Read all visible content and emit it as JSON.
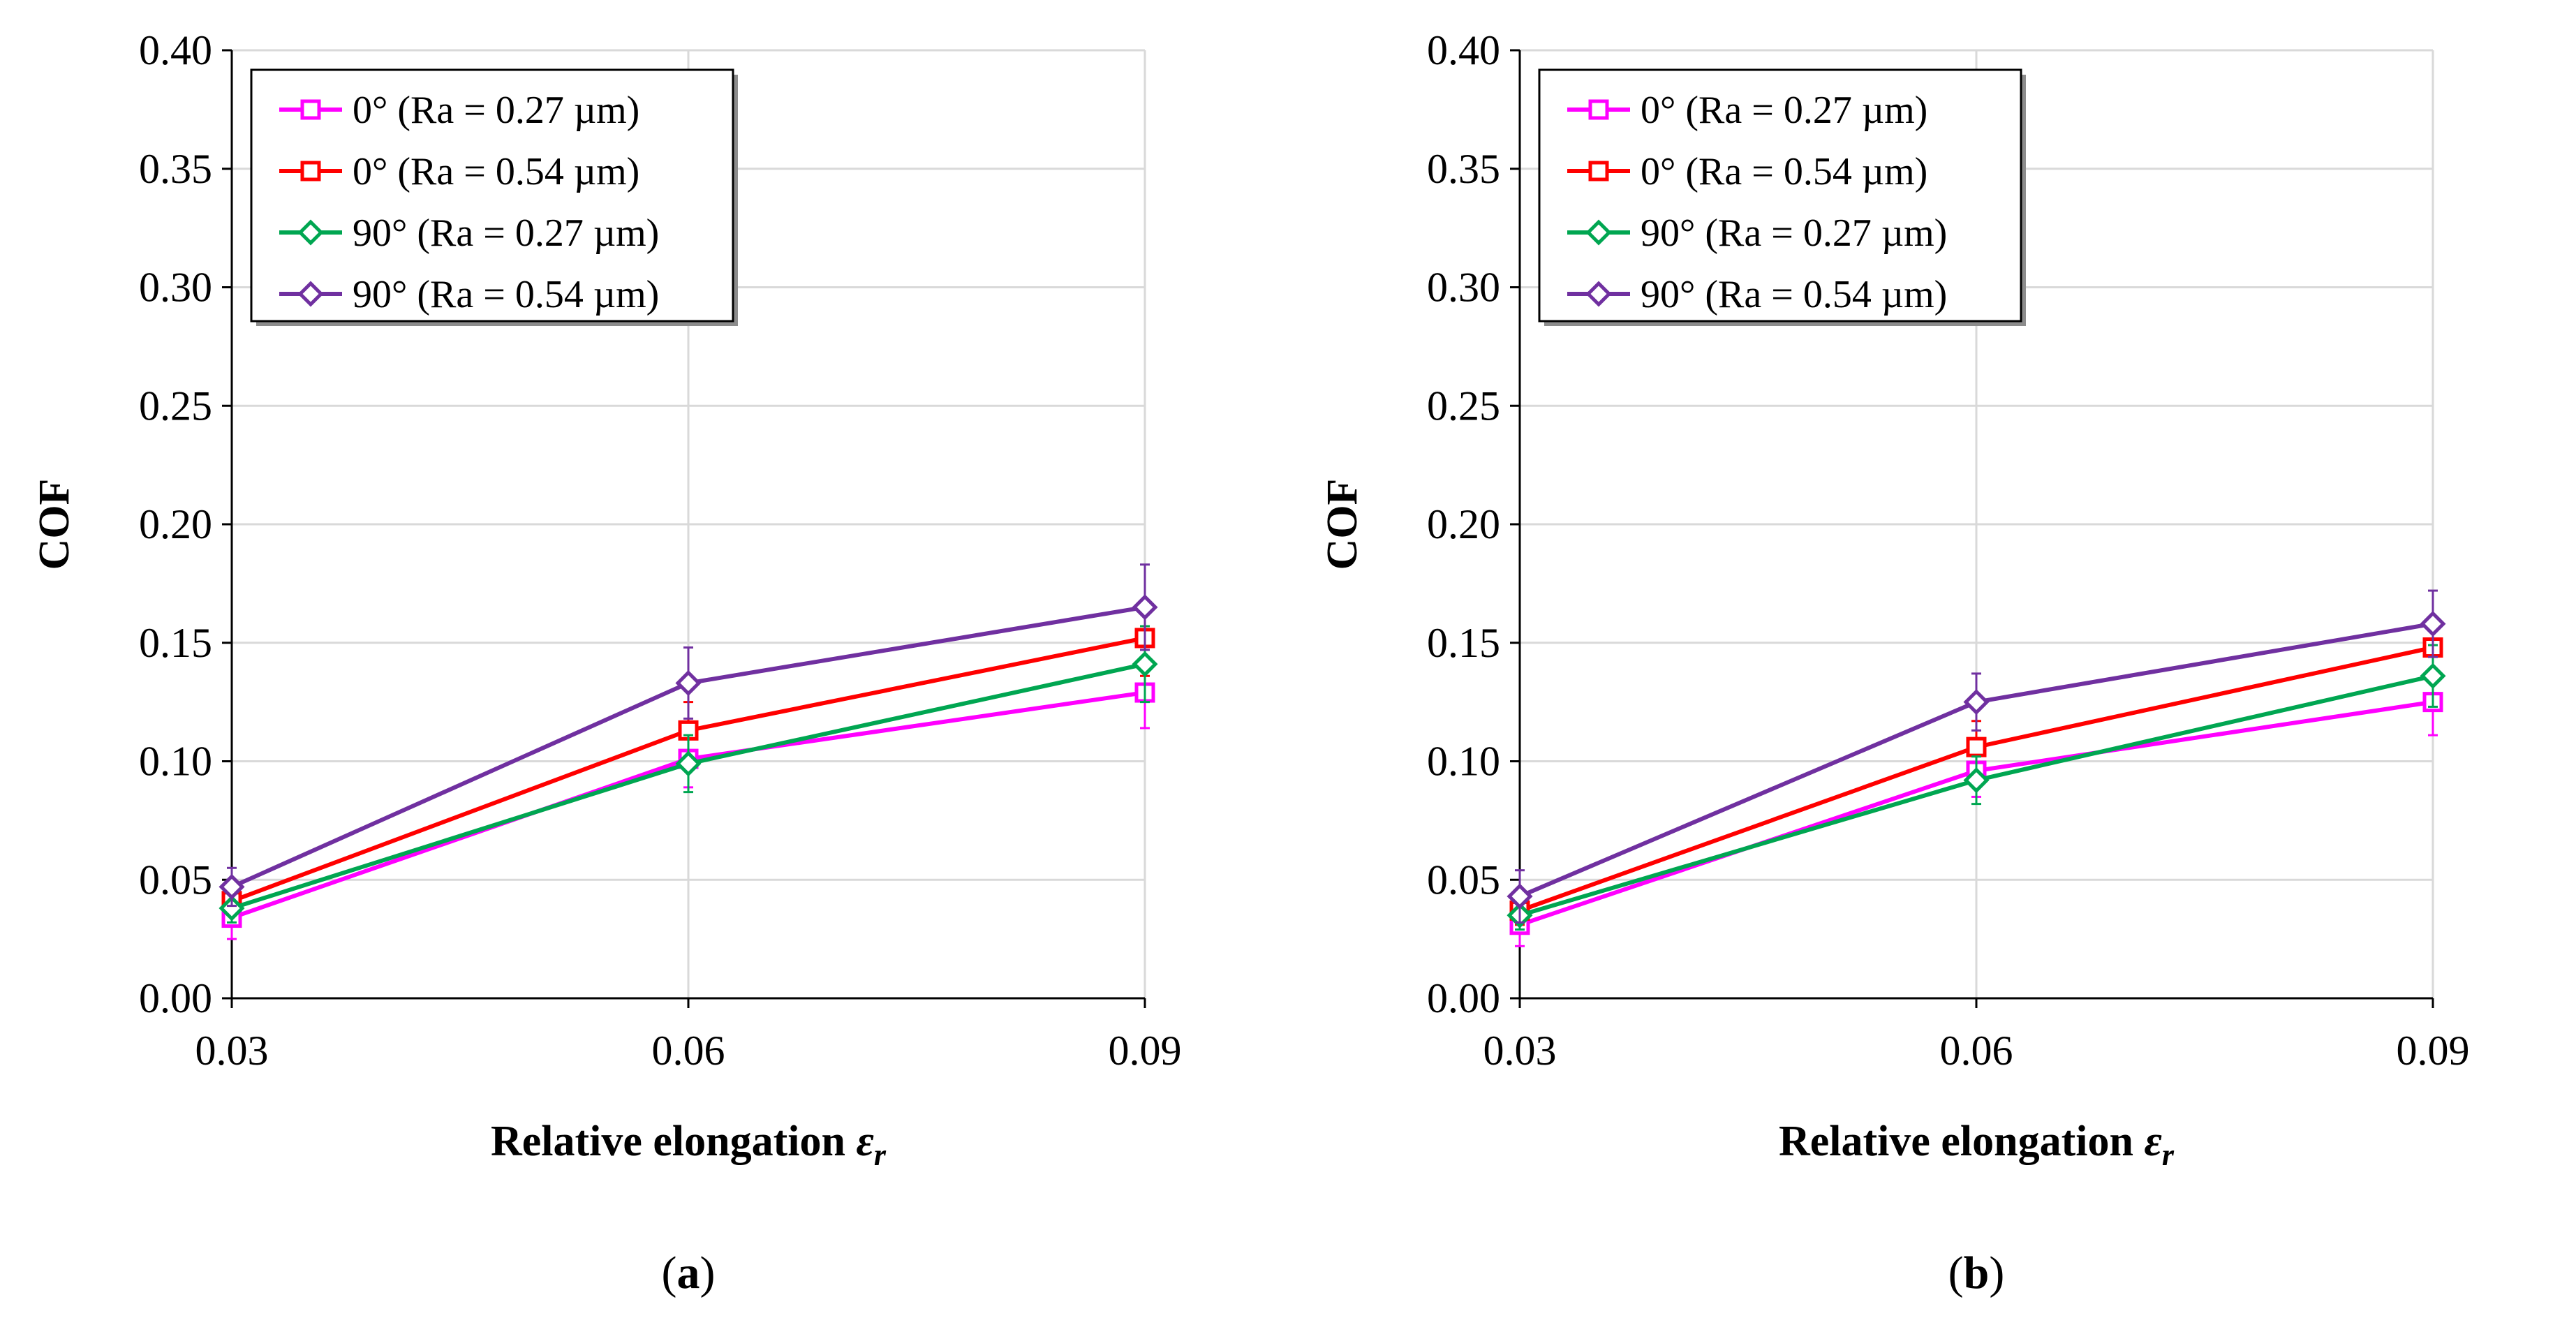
{
  "chart_data": [
    {
      "type": "line",
      "panel_label": "a",
      "xlabel": "Relative elongation ",
      "xlabel_symbol": "ε",
      "xlabel_subscript": "r",
      "ylabel": "COF",
      "x": [
        0.03,
        0.06,
        0.09
      ],
      "x_tick_labels": [
        "0.03",
        "0.06",
        "0.09"
      ],
      "y_tick_labels": [
        "0.00",
        "0.05",
        "0.10",
        "0.15",
        "0.20",
        "0.25",
        "0.30",
        "0.35",
        "0.40"
      ],
      "ylim": [
        0,
        0.4
      ],
      "grid": true,
      "legend_position": "top-left",
      "series": [
        {
          "name": "0° (Ra = 0.27 µm)",
          "marker": "square",
          "color": "#ff00ff",
          "values": [
            0.034,
            0.101,
            0.129
          ],
          "errors": [
            0.009,
            0.012,
            0.015
          ]
        },
        {
          "name": "0° (Ra = 0.54 µm)",
          "marker": "square",
          "color": "#ff0000",
          "values": [
            0.041,
            0.113,
            0.152
          ],
          "errors": [
            0.006,
            0.012,
            0.016
          ]
        },
        {
          "name": "90° (Ra = 0.27 µm)",
          "marker": "diamond",
          "color": "#00a651",
          "values": [
            0.038,
            0.099,
            0.141
          ],
          "errors": [
            0.006,
            0.012,
            0.016
          ]
        },
        {
          "name": "90° (Ra = 0.54 µm)",
          "marker": "diamond",
          "color": "#7030a0",
          "values": [
            0.047,
            0.133,
            0.165
          ],
          "errors": [
            0.008,
            0.015,
            0.018
          ]
        }
      ]
    },
    {
      "type": "line",
      "panel_label": "b",
      "xlabel": "Relative elongation ",
      "xlabel_symbol": "ε",
      "xlabel_subscript": "r",
      "ylabel": "COF",
      "x": [
        0.03,
        0.06,
        0.09
      ],
      "x_tick_labels": [
        "0.03",
        "0.06",
        "0.09"
      ],
      "y_tick_labels": [
        "0.00",
        "0.05",
        "0.10",
        "0.15",
        "0.20",
        "0.25",
        "0.30",
        "0.35",
        "0.40"
      ],
      "ylim": [
        0,
        0.4
      ],
      "grid": true,
      "legend_position": "top-left",
      "series": [
        {
          "name": "0° (Ra = 0.27 µm)",
          "marker": "square",
          "color": "#ff00ff",
          "values": [
            0.031,
            0.096,
            0.125
          ],
          "errors": [
            0.009,
            0.011,
            0.014
          ]
        },
        {
          "name": "0° (Ra = 0.54 µm)",
          "marker": "square",
          "color": "#ff0000",
          "values": [
            0.037,
            0.106,
            0.148
          ],
          "errors": [
            0.006,
            0.011,
            0.013
          ]
        },
        {
          "name": "90° (Ra = 0.27 µm)",
          "marker": "diamond",
          "color": "#00a651",
          "values": [
            0.035,
            0.092,
            0.136
          ],
          "errors": [
            0.006,
            0.01,
            0.013
          ]
        },
        {
          "name": "90° (Ra = 0.54 µm)",
          "marker": "diamond",
          "color": "#7030a0",
          "values": [
            0.043,
            0.125,
            0.158
          ],
          "errors": [
            0.011,
            0.012,
            0.014
          ]
        }
      ]
    }
  ]
}
